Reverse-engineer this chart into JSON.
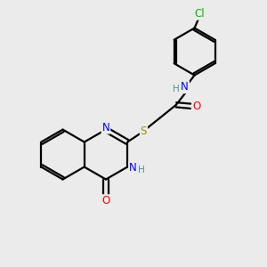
{
  "background_color": "#ebebeb",
  "bond_color": "#000000",
  "atom_colors": {
    "N": "#0000ff",
    "O": "#ff0000",
    "S": "#999900",
    "Cl": "#00bb00",
    "H_label": "#4a9090"
  },
  "figsize": [
    3.0,
    3.0
  ],
  "dpi": 100
}
